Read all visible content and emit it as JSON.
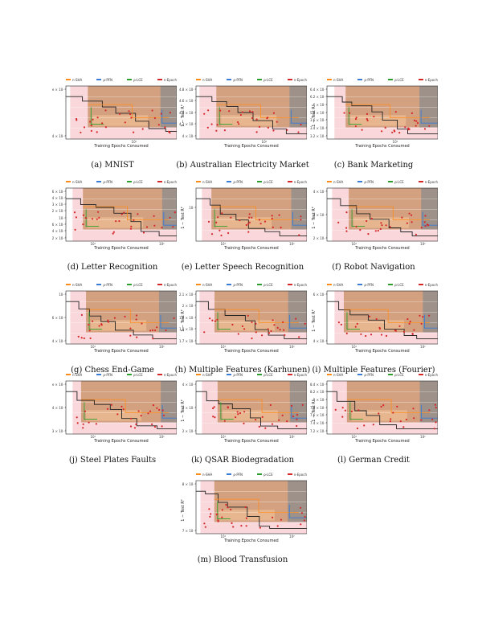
{
  "legend": {
    "items": [
      {
        "label": "n-SHA",
        "color": "#ff8c1a"
      },
      {
        "label": "ρ-PFN",
        "color": "#3a7bd5"
      },
      {
        "label": "ρ-LCE",
        "color": "#2ca02c"
      },
      {
        "label": "n-Epoch",
        "color": "#d62728"
      }
    ]
  },
  "axis": {
    "xlabel": "Training Epochs Consumed",
    "ylabel": "1 − Test R²"
  },
  "colors": {
    "pink_band": "#f4b6be",
    "brown_band": "#c48a5a",
    "gray_band": "#8c8c8c",
    "orange_band": "#f6c99a"
  },
  "chart_data": [
    {
      "type": "line",
      "caption": "(a) MNIST",
      "xticks": [
        "10¹"
      ],
      "yticks": [
        "e × 10⁻²",
        "4 × 10⁻²"
      ],
      "ylabel": ""
    },
    {
      "type": "line",
      "caption": "(b) Australian Electricity Market",
      "xticks": [
        "10¹"
      ],
      "yticks": [
        "4.8 × 10⁻¹",
        "4.6 × 10⁻¹",
        "4.4 × 10⁻¹",
        "4.2 × 10⁻¹",
        "4 × 10⁻¹"
      ],
      "ylabel": "1 − Test R²"
    },
    {
      "type": "line",
      "caption": "(c) Bank Marketing",
      "xticks": [
        "10¹"
      ],
      "yticks": [
        "6.4 × 10⁻¹",
        "6.2 × 10⁻¹",
        "6 × 10⁻¹",
        "5.8 × 10⁻¹",
        "3.6 × 10⁻¹",
        "3.4 × 10⁻¹",
        "3.2 × 10⁻¹"
      ],
      "ylabel": "1 − Test R²"
    },
    {
      "type": "line",
      "caption": "(d) Letter Recognition",
      "xticks": [
        "10¹",
        "10²"
      ],
      "yticks": [
        "6 × 10⁻²",
        "4 × 10⁻²",
        "3 × 10⁻²",
        "2 × 10⁻²",
        "10⁻²",
        "6 × 10⁻³",
        "4 × 10⁻³",
        "2 × 10⁻³"
      ],
      "ylabel": ""
    },
    {
      "type": "line",
      "caption": "(e) Letter Speech Recognition",
      "xticks": [
        "10¹",
        "10²"
      ],
      "yticks": [
        "10⁻¹"
      ],
      "ylabel": "1 − Test R²"
    },
    {
      "type": "line",
      "caption": "(f) Robot Navigation",
      "xticks": [
        "10¹",
        "10²"
      ],
      "yticks": [
        "4 × 10⁻¹",
        "3 × 10⁻¹",
        "2 × 10⁻¹"
      ],
      "ylabel": "1 − Test R²"
    },
    {
      "type": "line",
      "caption": "(g) Chess End-Game",
      "xticks": [
        "10¹",
        "10²"
      ],
      "yticks": [
        "10⁻¹",
        "6 × 10⁻²",
        "4 × 10⁻²"
      ],
      "ylabel": ""
    },
    {
      "type": "line",
      "caption": "(h) Multiple Features (Karhunen)",
      "xticks": [
        "10¹",
        "10²"
      ],
      "yticks": [
        "2.1 × 10⁻¹",
        "2 × 10⁻¹",
        "1.9 × 10⁻¹",
        "1.8 × 10⁻¹",
        "1.7 × 10⁻¹"
      ],
      "ylabel": "1 − Test R²"
    },
    {
      "type": "line",
      "caption": "(i) Multiple Features (Fourier)",
      "xticks": [
        "10¹",
        "10²"
      ],
      "yticks": [
        "6 × 10⁻¹",
        "4 × 10⁻¹"
      ],
      "ylabel": "1 − Test R²"
    },
    {
      "type": "line",
      "caption": "(j) Steel Plates Faults",
      "xticks": [
        "10¹",
        "10²"
      ],
      "yticks": [
        "e × 10⁻¹",
        "4 × 10⁻¹",
        "3 × 10⁻¹"
      ],
      "ylabel": ""
    },
    {
      "type": "line",
      "caption": "(k) QSAR Biodegradation",
      "xticks": [
        "10¹",
        "10²"
      ],
      "yticks": [
        "4 × 10⁻¹",
        "3 × 10⁻¹",
        "2 × 10⁻¹"
      ],
      "ylabel": "1 − Test R²"
    },
    {
      "type": "line",
      "caption": "(l) German Credit",
      "xticks": [
        "10¹",
        "10²"
      ],
      "yticks": [
        "8.4 × 10⁻¹",
        "8.2 × 10⁻¹",
        "8 × 10⁻¹",
        "7.8 × 10⁻¹",
        "7.6 × 10⁻¹",
        "7.4 × 10⁻¹",
        "7.2 × 10⁻¹"
      ],
      "ylabel": "1 − Test R²"
    },
    {
      "type": "line",
      "caption": "(m) Blood Transfusion",
      "xticks": [
        "10¹",
        "10²"
      ],
      "yticks": [
        "8 × 10⁻¹",
        "7 × 10⁻¹"
      ],
      "ylabel": "1 − Test R²"
    }
  ]
}
